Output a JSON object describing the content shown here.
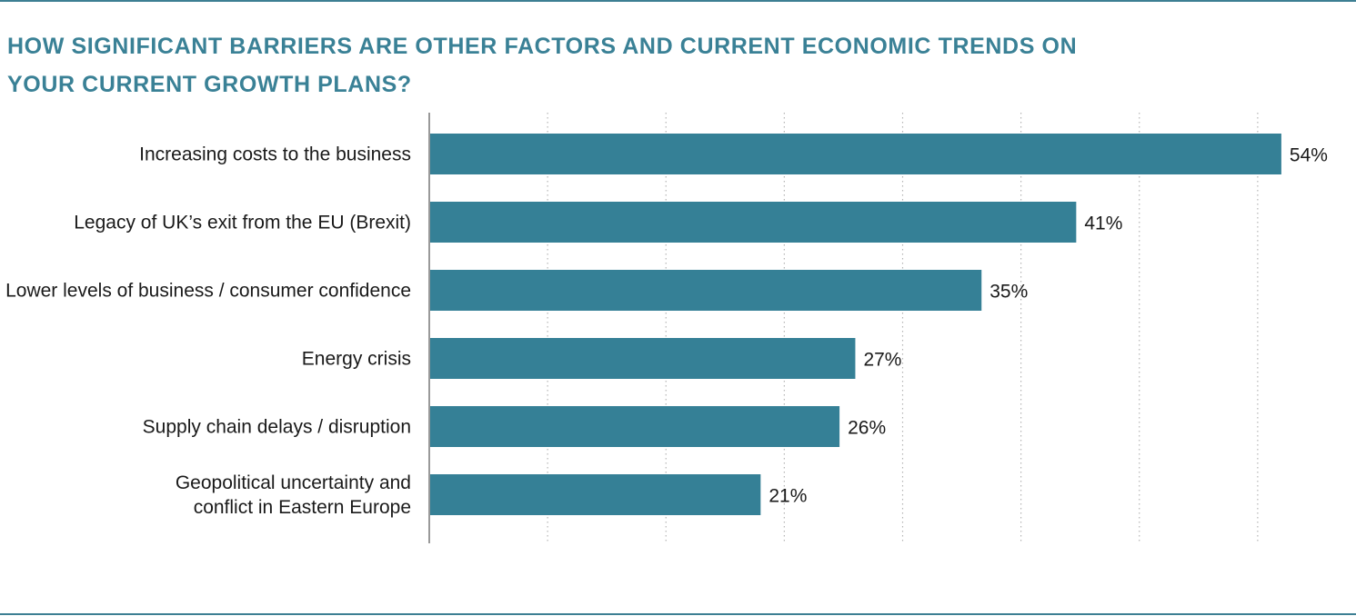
{
  "title_lines": [
    "HOW SIGNIFICANT BARRIERS ARE OTHER FACTORS AND CURRENT ECONOMIC TRENDS ON",
    "YOUR CURRENT GROWTH PLANS?"
  ],
  "colors": {
    "accent": "#3a8196",
    "bar": "#358096",
    "grid": "#b5b5b5",
    "axis": "#999999"
  },
  "chart_data": {
    "type": "bar",
    "orientation": "horizontal",
    "title": "HOW SIGNIFICANT BARRIERS ARE OTHER FACTORS AND CURRENT ECONOMIC TRENDS ON YOUR CURRENT GROWTH PLANS?",
    "categories": [
      [
        "Increasing costs to the business"
      ],
      [
        "Legacy of UK’s exit from the EU (Brexit)"
      ],
      [
        "Lower levels of business / consumer confidence"
      ],
      [
        "Energy crisis"
      ],
      [
        "Supply chain delays / disruption"
      ],
      [
        "Geopolitical uncertainty and",
        "conflict in Eastern Europe"
      ]
    ],
    "values": [
      54,
      41,
      35,
      27,
      26,
      21
    ],
    "value_labels": [
      "54%",
      "41%",
      "35%",
      "27%",
      "26%",
      "21%"
    ],
    "xlim": [
      0,
      60
    ],
    "grid": true,
    "grid_step": 7.5,
    "legend": "none"
  }
}
